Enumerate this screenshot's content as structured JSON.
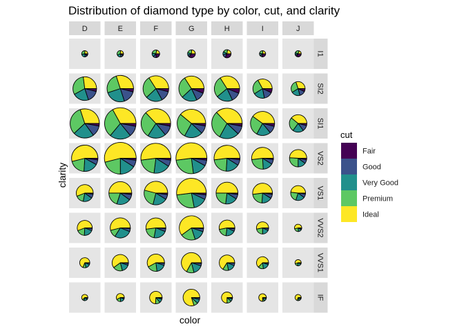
{
  "chart_data": {
    "type": "pie",
    "title": "Distribution of diamond type by color, cut, and clarity",
    "xlabel": "color",
    "ylabel": "clarity",
    "legend": {
      "title": "cut",
      "placement": "right"
    },
    "columns": [
      "D",
      "E",
      "F",
      "G",
      "H",
      "I",
      "J"
    ],
    "rows": [
      "I1",
      "SI2",
      "SI1",
      "VS2",
      "VS1",
      "VVS2",
      "VVS1",
      "IF"
    ],
    "cuts": [
      {
        "name": "Fair",
        "color": "#440154"
      },
      {
        "name": "Good",
        "color": "#3B528B"
      },
      {
        "name": "Very Good",
        "color": "#21908C"
      },
      {
        "name": "Premium",
        "color": "#5DC863"
      },
      {
        "name": "Ideal",
        "color": "#FDE725"
      }
    ],
    "cells": [
      [
        {
          "n": 42,
          "p": [
            0.1,
            0.13,
            0.24,
            0.29,
            0.24
          ]
        },
        {
          "n": 102,
          "p": [
            0.09,
            0.13,
            0.22,
            0.32,
            0.24
          ]
        },
        {
          "n": 143,
          "p": [
            0.24,
            0.13,
            0.16,
            0.26,
            0.21
          ]
        },
        {
          "n": 150,
          "p": [
            0.35,
            0.09,
            0.11,
            0.21,
            0.24
          ]
        },
        {
          "n": 162,
          "p": [
            0.32,
            0.14,
            0.13,
            0.18,
            0.23
          ]
        },
        {
          "n": 92,
          "p": [
            0.28,
            0.11,
            0.14,
            0.24,
            0.23
          ]
        },
        {
          "n": 50,
          "p": [
            0.34,
            0.1,
            0.12,
            0.24,
            0.2
          ]
        }
      ],
      [
        {
          "n": 1370,
          "p": [
            0.04,
            0.16,
            0.22,
            0.31,
            0.27
          ]
        },
        {
          "n": 1713,
          "p": [
            0.04,
            0.16,
            0.25,
            0.25,
            0.3
          ]
        },
        {
          "n": 1609,
          "p": [
            0.04,
            0.13,
            0.21,
            0.28,
            0.34
          ]
        },
        {
          "n": 1548,
          "p": [
            0.06,
            0.12,
            0.2,
            0.28,
            0.34
          ]
        },
        {
          "n": 1563,
          "p": [
            0.06,
            0.12,
            0.21,
            0.27,
            0.34
          ]
        },
        {
          "n": 912,
          "p": [
            0.07,
            0.15,
            0.19,
            0.26,
            0.33
          ]
        },
        {
          "n": 479,
          "p": [
            0.07,
            0.14,
            0.2,
            0.29,
            0.3
          ]
        }
      ],
      [
        {
          "n": 2083,
          "p": [
            0.03,
            0.12,
            0.23,
            0.32,
            0.3
          ]
        },
        {
          "n": 2426,
          "p": [
            0.03,
            0.11,
            0.22,
            0.31,
            0.33
          ]
        },
        {
          "n": 2131,
          "p": [
            0.03,
            0.11,
            0.2,
            0.29,
            0.37
          ]
        },
        {
          "n": 1976,
          "p": [
            0.03,
            0.09,
            0.21,
            0.28,
            0.39
          ]
        },
        {
          "n": 2275,
          "p": [
            0.03,
            0.09,
            0.21,
            0.3,
            0.37
          ]
        },
        {
          "n": 1424,
          "p": [
            0.04,
            0.1,
            0.19,
            0.27,
            0.4
          ]
        },
        {
          "n": 750,
          "p": [
            0.04,
            0.11,
            0.2,
            0.26,
            0.39
          ]
        }
      ],
      [
        {
          "n": 1697,
          "p": [
            0.02,
            0.06,
            0.18,
            0.2,
            0.54
          ]
        },
        {
          "n": 2470,
          "p": [
            0.02,
            0.07,
            0.16,
            0.21,
            0.54
          ]
        },
        {
          "n": 2201,
          "p": [
            0.02,
            0.07,
            0.18,
            0.21,
            0.52
          ]
        },
        {
          "n": 2347,
          "p": [
            0.02,
            0.06,
            0.15,
            0.25,
            0.52
          ]
        },
        {
          "n": 1643,
          "p": [
            0.02,
            0.07,
            0.17,
            0.22,
            0.52
          ]
        },
        {
          "n": 1169,
          "p": [
            0.02,
            0.07,
            0.15,
            0.24,
            0.52
          ]
        },
        {
          "n": 731,
          "p": [
            0.03,
            0.07,
            0.15,
            0.26,
            0.49
          ]
        }
      ],
      [
        {
          "n": 705,
          "p": [
            0.02,
            0.08,
            0.18,
            0.16,
            0.56
          ]
        },
        {
          "n": 1281,
          "p": [
            0.02,
            0.08,
            0.2,
            0.2,
            0.5
          ]
        },
        {
          "n": 1364,
          "p": [
            0.02,
            0.07,
            0.2,
            0.25,
            0.46
          ]
        },
        {
          "n": 2148,
          "p": [
            0.02,
            0.05,
            0.15,
            0.26,
            0.52
          ]
        },
        {
          "n": 1169,
          "p": [
            0.02,
            0.07,
            0.18,
            0.23,
            0.5
          ]
        },
        {
          "n": 962,
          "p": [
            0.02,
            0.07,
            0.17,
            0.22,
            0.52
          ]
        },
        {
          "n": 542,
          "p": [
            0.02,
            0.08,
            0.2,
            0.22,
            0.48
          ]
        }
      ],
      [
        {
          "n": 553,
          "p": [
            0.01,
            0.05,
            0.2,
            0.18,
            0.56
          ]
        },
        {
          "n": 991,
          "p": [
            0.01,
            0.05,
            0.28,
            0.12,
            0.54
          ]
        },
        {
          "n": 975,
          "p": [
            0.01,
            0.05,
            0.22,
            0.2,
            0.52
          ]
        },
        {
          "n": 1443,
          "p": [
            0.01,
            0.04,
            0.15,
            0.2,
            0.6
          ]
        },
        {
          "n": 608,
          "p": [
            0.02,
            0.05,
            0.2,
            0.2,
            0.53
          ]
        },
        {
          "n": 365,
          "p": [
            0.01,
            0.06,
            0.18,
            0.22,
            0.53
          ]
        },
        {
          "n": 131,
          "p": [
            0.02,
            0.06,
            0.16,
            0.22,
            0.54
          ]
        }
      ],
      [
        {
          "n": 252,
          "p": [
            0.01,
            0.05,
            0.15,
            0.1,
            0.69
          ]
        },
        {
          "n": 656,
          "p": [
            0.01,
            0.04,
            0.16,
            0.19,
            0.6
          ]
        },
        {
          "n": 734,
          "p": [
            0.01,
            0.04,
            0.18,
            0.19,
            0.58
          ]
        },
        {
          "n": 999,
          "p": [
            0.01,
            0.04,
            0.16,
            0.12,
            0.67
          ]
        },
        {
          "n": 585,
          "p": [
            0.01,
            0.05,
            0.16,
            0.12,
            0.66
          ]
        },
        {
          "n": 355,
          "p": [
            0.01,
            0.04,
            0.18,
            0.14,
            0.63
          ]
        },
        {
          "n": 74,
          "p": [
            0.02,
            0.05,
            0.22,
            0.16,
            0.55
          ]
        }
      ],
      [
        {
          "n": 73,
          "p": [
            0.02,
            0.08,
            0.18,
            0.1,
            0.62
          ]
        },
        {
          "n": 158,
          "p": [
            0.01,
            0.05,
            0.18,
            0.18,
            0.58
          ]
        },
        {
          "n": 385,
          "p": [
            0.01,
            0.03,
            0.1,
            0.12,
            0.74
          ]
        },
        {
          "n": 681,
          "p": [
            0.01,
            0.03,
            0.08,
            0.08,
            0.8
          ]
        },
        {
          "n": 299,
          "p": [
            0.01,
            0.03,
            0.08,
            0.13,
            0.75
          ]
        },
        {
          "n": 143,
          "p": [
            0.01,
            0.04,
            0.12,
            0.08,
            0.75
          ]
        },
        {
          "n": 51,
          "p": [
            0.02,
            0.05,
            0.14,
            0.1,
            0.69
          ]
        }
      ]
    ]
  }
}
